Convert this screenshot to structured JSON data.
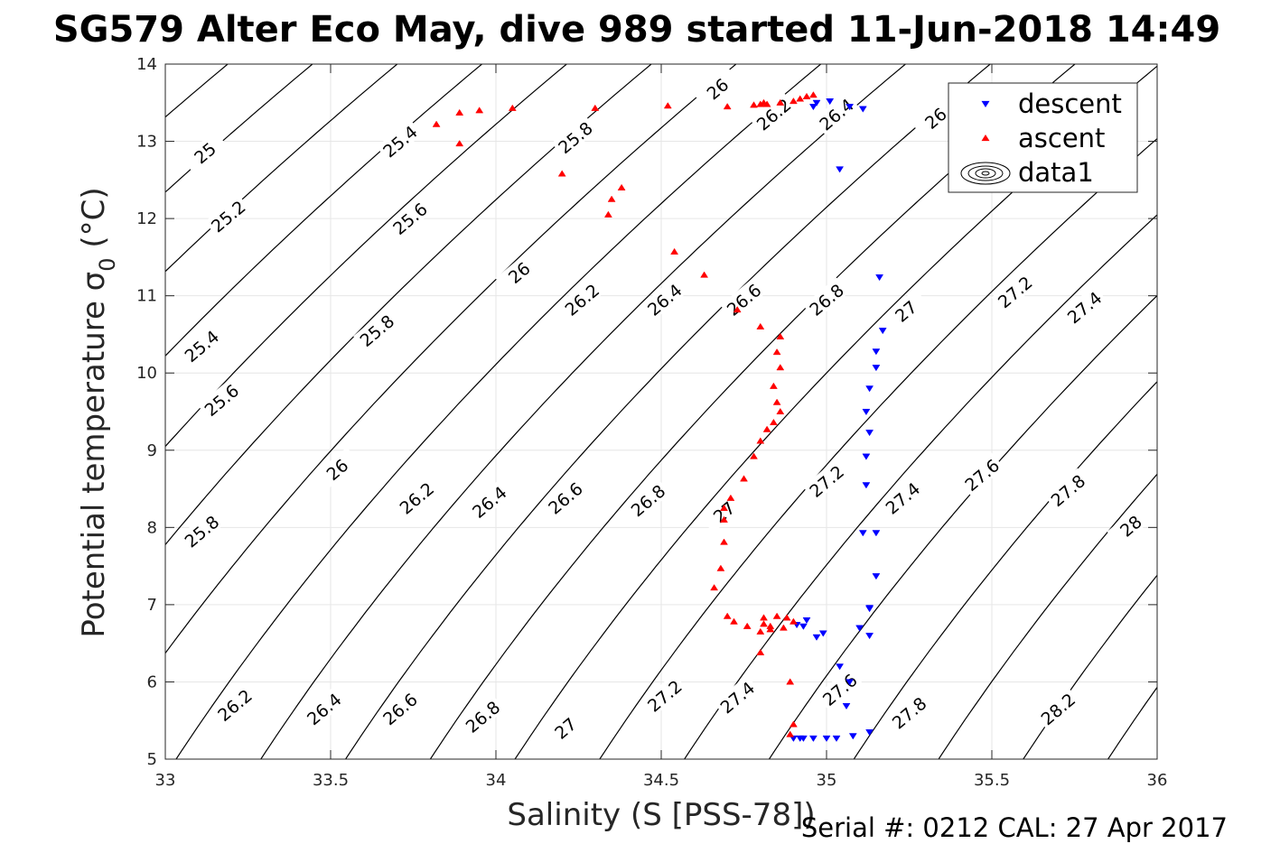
{
  "chart_data": {
    "type": "scatter",
    "title": "SG579 Alter Eco May, dive 989 started 11-Jun-2018 14:49",
    "xlabel": "Salinity (S [PSS-78])",
    "ylabel": "Potential temperature σ",
    "ylabel_sub": "0",
    "ylabel_unit": " (°C)",
    "xlim": [
      33,
      36
    ],
    "ylim": [
      5,
      14
    ],
    "x_ticks": [
      "33",
      "33.5",
      "34",
      "34.5",
      "35",
      "35.5",
      "36"
    ],
    "y_ticks": [
      "5",
      "6",
      "7",
      "8",
      "9",
      "10",
      "11",
      "12",
      "13",
      "14"
    ],
    "grid": true,
    "legend_position": "top-right",
    "legend": [
      {
        "label": "descent",
        "marker": "triangle-down",
        "color": "#0000ff"
      },
      {
        "label": "ascent",
        "marker": "triangle-up",
        "color": "#ff0000"
      },
      {
        "label": "data1",
        "marker": "contour",
        "color": "#000000"
      }
    ],
    "contours": {
      "levels": [
        "25",
        "25.2",
        "25.4",
        "25.6",
        "25.8",
        "26",
        "26.2",
        "26.4",
        "26.6",
        "26.8",
        "27",
        "27.2",
        "27.4",
        "27.6",
        "27.8",
        "28",
        "28.2"
      ],
      "labels": [
        {
          "text": "25",
          "s": 33.12,
          "t": 12.85
        },
        {
          "text": "25.2",
          "s": 33.19,
          "t": 12.03
        },
        {
          "text": "25.4",
          "s": 33.11,
          "t": 10.35
        },
        {
          "text": "25.6",
          "s": 33.17,
          "t": 9.65
        },
        {
          "text": "25.8",
          "s": 33.11,
          "t": 7.95
        },
        {
          "text": "25.4",
          "s": 33.71,
          "t": 13.0
        },
        {
          "text": "25.6",
          "s": 33.74,
          "t": 12.0
        },
        {
          "text": "25.8",
          "s": 33.64,
          "t": 10.55
        },
        {
          "text": "26",
          "s": 33.52,
          "t": 8.75
        },
        {
          "text": "26.2",
          "s": 33.21,
          "t": 5.7
        },
        {
          "text": "25.8",
          "s": 34.24,
          "t": 13.05
        },
        {
          "text": "26",
          "s": 34.07,
          "t": 11.3
        },
        {
          "text": "26.2",
          "s": 33.76,
          "t": 8.38
        },
        {
          "text": "26.4",
          "s": 33.48,
          "t": 5.65
        },
        {
          "text": "26",
          "s": 34.67,
          "t": 13.68
        },
        {
          "text": "26.2",
          "s": 34.26,
          "t": 10.95
        },
        {
          "text": "26.4",
          "s": 33.98,
          "t": 8.33
        },
        {
          "text": "26.6",
          "s": 33.71,
          "t": 5.65
        },
        {
          "text": "26.2",
          "s": 34.84,
          "t": 13.35
        },
        {
          "text": "26.4",
          "s": 34.51,
          "t": 10.95
        },
        {
          "text": "26.6",
          "s": 34.21,
          "t": 8.38
        },
        {
          "text": "26.8",
          "s": 33.96,
          "t": 5.55
        },
        {
          "text": "26.4",
          "s": 35.03,
          "t": 13.35
        },
        {
          "text": "26.6",
          "s": 34.75,
          "t": 10.95
        },
        {
          "text": "26.8",
          "s": 34.46,
          "t": 8.35
        },
        {
          "text": "27",
          "s": 34.21,
          "t": 5.4
        },
        {
          "text": "26.8",
          "s": 35.0,
          "t": 10.95
        },
        {
          "text": "27",
          "s": 34.69,
          "t": 8.2
        },
        {
          "text": "27.2",
          "s": 34.51,
          "t": 5.82
        },
        {
          "text": "27.2",
          "s": 35.0,
          "t": 8.6
        },
        {
          "text": "27.4",
          "s": 34.73,
          "t": 5.8
        },
        {
          "text": "27.6",
          "s": 35.04,
          "t": 5.9
        },
        {
          "text": "27",
          "s": 35.24,
          "t": 10.8
        },
        {
          "text": "27.4",
          "s": 35.23,
          "t": 8.38
        },
        {
          "text": "27.8",
          "s": 35.25,
          "t": 5.6
        },
        {
          "text": "26",
          "s": 35.33,
          "t": 13.3
        },
        {
          "text": "27.2",
          "s": 35.57,
          "t": 11.05
        },
        {
          "text": "27.6",
          "s": 35.47,
          "t": 8.68
        },
        {
          "text": "27.4",
          "s": 35.78,
          "t": 10.85
        },
        {
          "text": "27.8",
          "s": 35.73,
          "t": 8.48
        },
        {
          "text": "28",
          "s": 35.92,
          "t": 8.02
        },
        {
          "text": "28.2",
          "s": 35.7,
          "t": 5.65
        }
      ]
    },
    "series": [
      {
        "name": "descent",
        "marker": "triangle-down",
        "color": "#0000ff",
        "x": [
          34.96,
          34.97,
          35.01,
          35.07,
          35.11,
          35.04,
          35.16,
          35.17,
          35.15,
          35.15,
          35.13,
          35.12,
          35.13,
          35.12,
          35.12,
          35.11,
          35.15,
          35.13,
          35.15,
          35.13,
          35.1,
          35.13,
          34.99,
          35.04,
          34.97,
          34.93,
          34.94,
          34.91,
          35.07,
          35.06,
          35.08,
          35.13,
          35.03,
          35.0,
          34.96,
          34.93,
          34.9,
          34.92
        ],
        "y": [
          13.45,
          13.5,
          13.52,
          13.45,
          13.42,
          12.64,
          11.24,
          10.55,
          10.28,
          10.07,
          9.8,
          9.5,
          9.23,
          8.92,
          8.55,
          7.93,
          7.37,
          6.95,
          7.93,
          6.96,
          6.7,
          6.6,
          6.63,
          6.2,
          6.58,
          6.72,
          6.8,
          6.74,
          6.0,
          5.69,
          5.3,
          5.35,
          5.27,
          5.27,
          5.27,
          5.27,
          5.27,
          5.27
        ]
      },
      {
        "name": "ascent",
        "marker": "triangle-up",
        "color": "#ff0000",
        "x": [
          33.82,
          33.89,
          33.89,
          33.95,
          34.05,
          34.3,
          34.2,
          34.35,
          34.38,
          34.34,
          34.52,
          34.54,
          34.63,
          34.7,
          34.73,
          34.78,
          34.8,
          34.86,
          34.85,
          34.86,
          34.84,
          34.85,
          34.86,
          34.84,
          34.82,
          34.8,
          34.78,
          34.75,
          34.71,
          34.69,
          34.69,
          34.69,
          34.68,
          34.66,
          34.7,
          34.72,
          34.76,
          34.8,
          34.81,
          34.85,
          34.88,
          34.9,
          34.87,
          34.83,
          34.83,
          34.81,
          34.8,
          34.89,
          34.9,
          34.89,
          34.81,
          34.8,
          34.82,
          34.86,
          34.9,
          34.92,
          34.94,
          34.96
        ],
        "y": [
          13.22,
          13.37,
          12.97,
          13.4,
          13.43,
          13.43,
          12.58,
          12.25,
          12.4,
          12.05,
          13.46,
          11.57,
          11.27,
          13.45,
          10.82,
          13.47,
          10.6,
          10.47,
          10.27,
          10.07,
          9.83,
          9.62,
          9.5,
          9.36,
          9.27,
          9.12,
          8.92,
          8.63,
          8.38,
          8.25,
          8.1,
          7.81,
          7.47,
          7.22,
          6.85,
          6.78,
          6.72,
          6.65,
          6.83,
          6.85,
          6.83,
          6.78,
          6.7,
          6.68,
          6.72,
          6.75,
          6.38,
          6.0,
          5.45,
          5.32,
          13.5,
          13.48,
          13.48,
          13.5,
          13.52,
          13.55,
          13.58,
          13.6
        ]
      }
    ]
  },
  "footer": {
    "serial": "Serial #: 0212  CAL: 27 Apr 2017"
  }
}
